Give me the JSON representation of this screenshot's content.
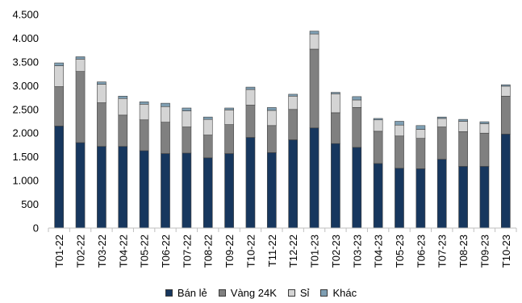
{
  "chart_data": {
    "type": "bar",
    "stacked": true,
    "categories": [
      "T01-22",
      "T02-22",
      "T03-22",
      "T04-22",
      "T05-22",
      "T06-22",
      "T07-22",
      "T08-22",
      "T09-22",
      "T10-22",
      "T11-22",
      "T12-22",
      "T01-23",
      "T02-23",
      "T03-23",
      "T04-23",
      "T05-23",
      "T06-23",
      "T07-23",
      "T08-23",
      "T09-23",
      "T10-23"
    ],
    "ylim": [
      0,
      4500
    ],
    "yticks": [
      0,
      500,
      1000,
      1500,
      2000,
      2500,
      3000,
      3500,
      4000,
      4500
    ],
    "ytick_labels": [
      "0",
      "500",
      "1.000",
      "1.500",
      "2.000",
      "2.500",
      "3.000",
      "3.500",
      "4.000",
      "4.500"
    ],
    "grid": false,
    "legend_position": "bottom",
    "series": [
      {
        "name": "Bán lẻ",
        "color": "#17375e",
        "values": [
          2150,
          1800,
          1720,
          1720,
          1630,
          1570,
          1580,
          1480,
          1570,
          1910,
          1590,
          1860,
          2110,
          1780,
          1700,
          1360,
          1260,
          1250,
          1450,
          1300,
          1300,
          1980
        ]
      },
      {
        "name": "Vàng 24K",
        "color": "#808080",
        "values": [
          830,
          1500,
          920,
          660,
          650,
          660,
          550,
          480,
          610,
          680,
          570,
          640,
          1660,
          650,
          840,
          680,
          680,
          640,
          680,
          730,
          700,
          800
        ]
      },
      {
        "name": "Sỉ",
        "color": "#d4d4d4",
        "values": [
          440,
          260,
          390,
          350,
          330,
          330,
          340,
          330,
          310,
          330,
          320,
          280,
          320,
          400,
          160,
          240,
          230,
          190,
          180,
          220,
          200,
          210
        ]
      },
      {
        "name": "Khác",
        "color": "#7f9fb3",
        "values": [
          60,
          50,
          50,
          50,
          50,
          70,
          60,
          50,
          40,
          50,
          60,
          40,
          60,
          30,
          70,
          30,
          80,
          80,
          30,
          40,
          40,
          30
        ]
      }
    ]
  }
}
